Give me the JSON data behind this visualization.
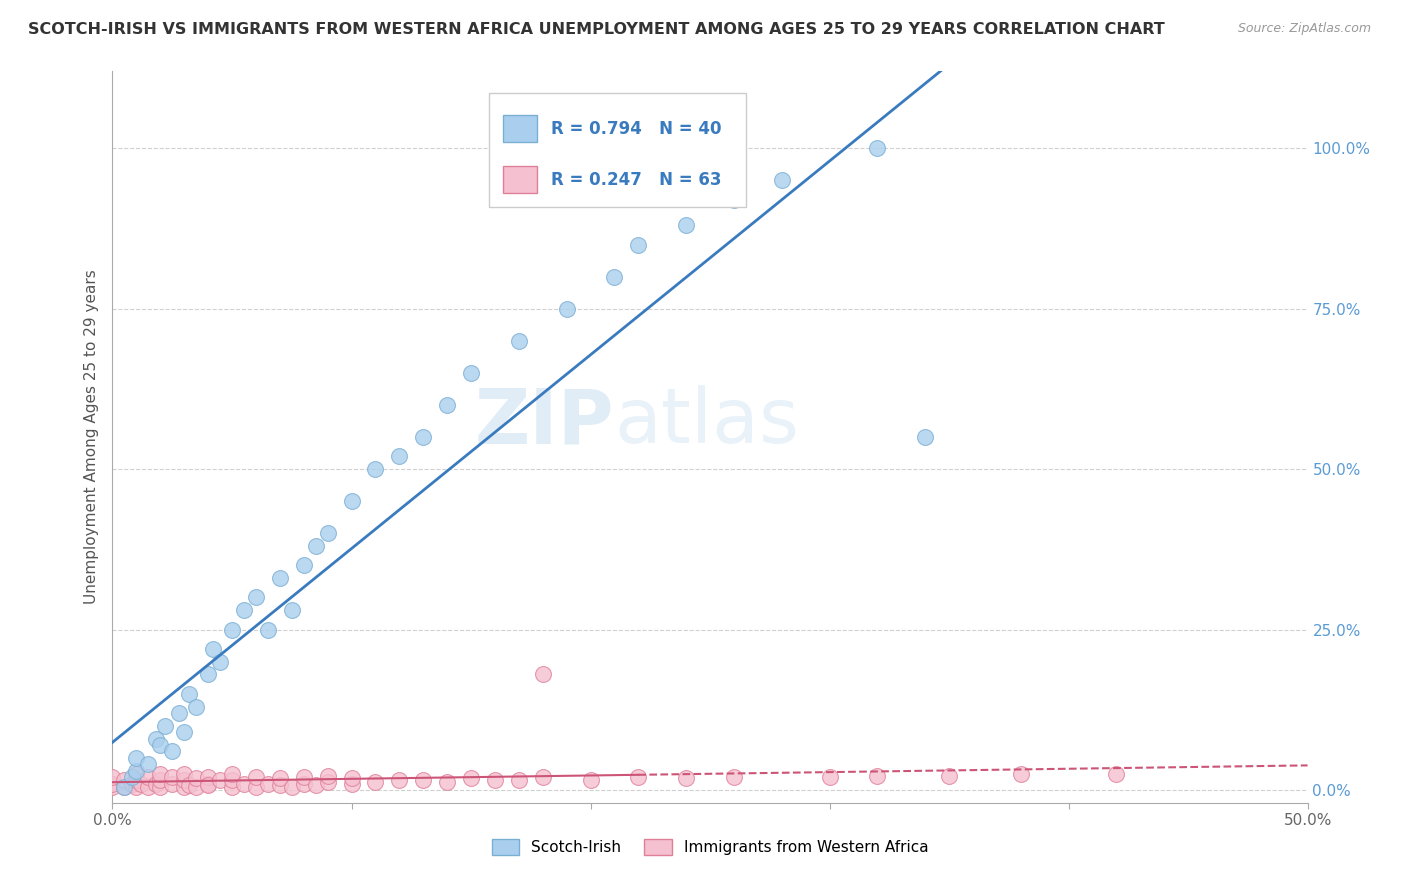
{
  "title": "SCOTCH-IRISH VS IMMIGRANTS FROM WESTERN AFRICA UNEMPLOYMENT AMONG AGES 25 TO 29 YEARS CORRELATION CHART",
  "source": "Source: ZipAtlas.com",
  "ylabel": "Unemployment Among Ages 25 to 29 years",
  "xlim": [
    0.0,
    0.5
  ],
  "ylim": [
    -0.02,
    1.12
  ],
  "y_ticks_right": [
    0.0,
    0.25,
    0.5,
    0.75,
    1.0
  ],
  "y_tick_labels_right": [
    "0.0%",
    "25.0%",
    "50.0%",
    "75.0%",
    "100.0%"
  ],
  "grid_color": "#d0d0d0",
  "background_color": "#ffffff",
  "series1_color": "#aacfee",
  "series1_edge": "#7aafd4",
  "series2_color": "#f5c0d0",
  "series2_edge": "#e08098",
  "line1_color": "#3a7bbf",
  "line2_color": "#cc5577",
  "legend_R1": "R = 0.794",
  "legend_N1": "N = 40",
  "legend_R2": "R = 0.247",
  "legend_N2": "N = 63",
  "legend_label1": "Scotch-Irish",
  "legend_label2": "Immigrants from Western Africa",
  "watermark_zip": "ZIP",
  "watermark_atlas": "atlas",
  "scotch_irish_x": [
    0.005,
    0.008,
    0.01,
    0.01,
    0.015,
    0.018,
    0.02,
    0.022,
    0.025,
    0.028,
    0.03,
    0.032,
    0.035,
    0.04,
    0.042,
    0.045,
    0.05,
    0.055,
    0.06,
    0.065,
    0.07,
    0.075,
    0.08,
    0.085,
    0.09,
    0.1,
    0.11,
    0.12,
    0.13,
    0.14,
    0.15,
    0.17,
    0.19,
    0.21,
    0.22,
    0.24,
    0.26,
    0.28,
    0.32,
    0.34
  ],
  "scotch_irish_y": [
    0.005,
    0.02,
    0.03,
    0.05,
    0.04,
    0.08,
    0.07,
    0.1,
    0.06,
    0.12,
    0.09,
    0.15,
    0.13,
    0.18,
    0.22,
    0.2,
    0.25,
    0.28,
    0.3,
    0.25,
    0.33,
    0.28,
    0.35,
    0.38,
    0.4,
    0.45,
    0.5,
    0.52,
    0.55,
    0.6,
    0.65,
    0.7,
    0.75,
    0.8,
    0.85,
    0.88,
    0.92,
    0.95,
    1.0,
    0.55
  ],
  "western_africa_x": [
    0.0,
    0.0,
    0.0,
    0.005,
    0.005,
    0.008,
    0.01,
    0.01,
    0.01,
    0.012,
    0.015,
    0.015,
    0.018,
    0.02,
    0.02,
    0.02,
    0.025,
    0.025,
    0.03,
    0.03,
    0.03,
    0.032,
    0.035,
    0.035,
    0.04,
    0.04,
    0.04,
    0.045,
    0.05,
    0.05,
    0.05,
    0.055,
    0.06,
    0.06,
    0.065,
    0.07,
    0.07,
    0.075,
    0.08,
    0.08,
    0.085,
    0.09,
    0.09,
    0.1,
    0.1,
    0.11,
    0.12,
    0.13,
    0.14,
    0.15,
    0.16,
    0.17,
    0.18,
    0.2,
    0.22,
    0.24,
    0.26,
    0.3,
    0.32,
    0.35,
    0.38,
    0.42,
    0.18
  ],
  "western_africa_y": [
    0.005,
    0.01,
    0.02,
    0.005,
    0.015,
    0.01,
    0.005,
    0.015,
    0.025,
    0.01,
    0.005,
    0.02,
    0.01,
    0.005,
    0.015,
    0.025,
    0.01,
    0.02,
    0.005,
    0.015,
    0.025,
    0.008,
    0.005,
    0.018,
    0.01,
    0.02,
    0.008,
    0.015,
    0.005,
    0.015,
    0.025,
    0.01,
    0.005,
    0.02,
    0.01,
    0.008,
    0.018,
    0.005,
    0.01,
    0.02,
    0.008,
    0.012,
    0.022,
    0.01,
    0.018,
    0.012,
    0.015,
    0.015,
    0.012,
    0.018,
    0.015,
    0.015,
    0.02,
    0.015,
    0.02,
    0.018,
    0.02,
    0.02,
    0.022,
    0.022,
    0.025,
    0.025,
    0.18
  ]
}
